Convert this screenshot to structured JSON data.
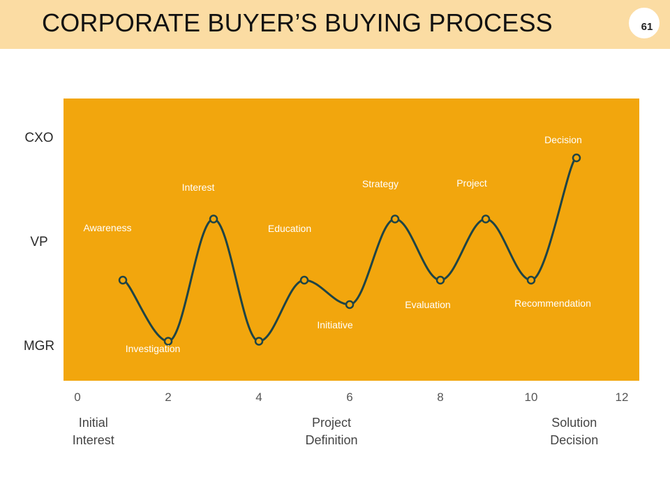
{
  "header": {
    "title": "CORPORATE BUYER’S BUYING PROCESS",
    "page_number": "61"
  },
  "colors": {
    "header_bg": "#fbdca3",
    "plot_bg": "#f2a60d",
    "line": "#1f4445",
    "point_label": "#ffffff"
  },
  "chart_data": {
    "type": "line",
    "title": "",
    "xlim": [
      0,
      12
    ],
    "x_ticks": [
      0,
      2,
      4,
      6,
      8,
      10,
      12
    ],
    "y_levels": [
      "MGR",
      "VP",
      "CXO"
    ],
    "ylim": [
      0,
      2
    ],
    "stages": [
      {
        "x": 0.35,
        "label": [
          "Initial",
          "Interest"
        ]
      },
      {
        "x": 5.6,
        "label": [
          "Project",
          "Definition"
        ]
      },
      {
        "x": 10.95,
        "label": [
          "Solution",
          "Decision"
        ]
      }
    ],
    "points": [
      {
        "x": 1,
        "y": 0.6,
        "label": "Awareness",
        "label_pos": "above-left"
      },
      {
        "x": 2,
        "y": 0.1,
        "label": "Investigation",
        "label_pos": "below"
      },
      {
        "x": 3,
        "y": 1.1,
        "label": "Interest",
        "label_pos": "above-left"
      },
      {
        "x": 4,
        "y": 0.1,
        "label": "Education",
        "label_pos": "above-right"
      },
      {
        "x": 5,
        "y": 0.6,
        "label": "Initiative",
        "label_pos": "below-right"
      },
      {
        "x": 6,
        "y": 0.4,
        "label": "Strategy",
        "label_pos": "above-right"
      },
      {
        "x": 7,
        "y": 1.1,
        "label": "Evaluation",
        "label_pos": "below-right"
      },
      {
        "x": 8,
        "y": 0.6,
        "label": "Project",
        "label_pos": "above-right"
      },
      {
        "x": 9,
        "y": 1.1,
        "label": "Recommendation",
        "label_pos": "below-right"
      },
      {
        "x": 10,
        "y": 0.6,
        "label": "Decision",
        "label_pos": "above"
      },
      {
        "x": 11,
        "y": 1.6,
        "label": "",
        "label_pos": "none"
      }
    ]
  }
}
